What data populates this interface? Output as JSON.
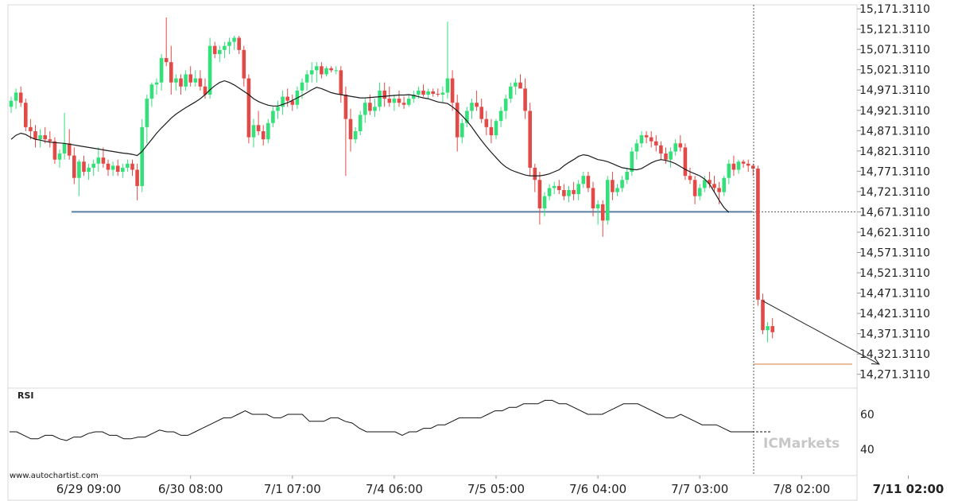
{
  "chart_data": {
    "type": "candlestick",
    "y_axis": {
      "side": "right",
      "ylim": [
        14241.311,
        15181.311
      ],
      "ticks": [
        "15,171.3110",
        "15,121.3110",
        "15,071.3110",
        "15,021.3110",
        "14,971.3110",
        "14,921.3110",
        "14,871.3110",
        "14,821.3110",
        "14,771.3110",
        "14,721.3110",
        "14,671.3110",
        "14,621.3110",
        "14,571.3110",
        "14,521.3110",
        "14,471.3110",
        "14,421.3110",
        "14,371.3110",
        "14,321.3110",
        "14,271.3110"
      ],
      "tick_values": [
        15171.311,
        15121.311,
        15071.311,
        15021.311,
        14971.311,
        14921.311,
        14871.311,
        14821.311,
        14771.311,
        14721.311,
        14671.311,
        14621.311,
        14571.311,
        14521.311,
        14471.311,
        14421.311,
        14371.311,
        14321.311,
        14271.311
      ]
    },
    "x_axis": {
      "ticks": [
        "6/29 09:00",
        "6/30 08:00",
        "7/1 07:00",
        "7/4 06:00",
        "7/5 05:00",
        "7/6 04:00",
        "7/7 03:00",
        "7/8 02:00",
        "7/11 02:00"
      ],
      "tick_index": [
        16,
        37,
        58,
        79,
        100,
        121,
        142,
        163,
        185
      ],
      "highlight": "7/11 02:00"
    },
    "candles": [
      [
        14930,
        14955,
        14915,
        14945
      ],
      [
        14945,
        14975,
        14925,
        14965
      ],
      [
        14965,
        14980,
        14930,
        14940
      ],
      [
        14940,
        14950,
        14870,
        14880
      ],
      [
        14880,
        14900,
        14850,
        14870
      ],
      [
        14870,
        14885,
        14830,
        14850
      ],
      [
        14850,
        14875,
        14830,
        14860
      ],
      [
        14860,
        14880,
        14840,
        14850
      ],
      [
        14850,
        14870,
        14830,
        14845
      ],
      [
        14845,
        14855,
        14790,
        14800
      ],
      [
        14800,
        14825,
        14780,
        14815
      ],
      [
        14815,
        14915,
        14800,
        14840
      ],
      [
        14840,
        14875,
        14800,
        14810
      ],
      [
        14810,
        14830,
        14740,
        14755
      ],
      [
        14755,
        14800,
        14710,
        14795
      ],
      [
        14795,
        14810,
        14760,
        14770
      ],
      [
        14770,
        14790,
        14750,
        14780
      ],
      [
        14780,
        14800,
        14760,
        14790
      ],
      [
        14790,
        14830,
        14770,
        14805
      ],
      [
        14805,
        14830,
        14780,
        14790
      ],
      [
        14790,
        14800,
        14760,
        14775
      ],
      [
        14775,
        14795,
        14760,
        14785
      ],
      [
        14785,
        14800,
        14760,
        14770
      ],
      [
        14770,
        14790,
        14755,
        14780
      ],
      [
        14780,
        14800,
        14770,
        14790
      ],
      [
        14790,
        14800,
        14760,
        14775
      ],
      [
        14775,
        14790,
        14700,
        14735
      ],
      [
        14735,
        14900,
        14720,
        14880
      ],
      [
        14880,
        14960,
        14840,
        14950
      ],
      [
        14950,
        14990,
        14930,
        14985
      ],
      [
        14985,
        15000,
        14960,
        14990
      ],
      [
        14990,
        15060,
        14970,
        15050
      ],
      [
        15050,
        15150,
        15030,
        15040
      ],
      [
        15040,
        15080,
        14960,
        14990
      ],
      [
        14990,
        15010,
        14970,
        15000
      ],
      [
        15000,
        15010,
        14960,
        14980
      ],
      [
        14980,
        15020,
        14970,
        15010
      ],
      [
        15010,
        15030,
        14980,
        14990
      ],
      [
        14990,
        15020,
        14980,
        15000
      ],
      [
        15000,
        15020,
        14970,
        14980
      ],
      [
        14980,
        15000,
        14950,
        14960
      ],
      [
        14960,
        15100,
        14950,
        15080
      ],
      [
        15080,
        15090,
        15050,
        15060
      ],
      [
        15060,
        15080,
        15040,
        15070
      ],
      [
        15070,
        15090,
        15050,
        15080
      ],
      [
        15080,
        15100,
        15060,
        15090
      ],
      [
        15090,
        15105,
        15070,
        15100
      ],
      [
        15100,
        15105,
        15060,
        15070
      ],
      [
        15070,
        15080,
        14980,
        15000
      ],
      [
        15000,
        15010,
        14840,
        14855
      ],
      [
        14855,
        14900,
        14830,
        14885
      ],
      [
        14885,
        14920,
        14860,
        14870
      ],
      [
        14870,
        14885,
        14835,
        14850
      ],
      [
        14850,
        14900,
        14840,
        14890
      ],
      [
        14890,
        14930,
        14880,
        14920
      ],
      [
        14920,
        14945,
        14900,
        14930
      ],
      [
        14930,
        14970,
        14910,
        14955
      ],
      [
        14955,
        14975,
        14930,
        14945
      ],
      [
        14945,
        14960,
        14920,
        14935
      ],
      [
        14935,
        14980,
        14925,
        14970
      ],
      [
        14970,
        15000,
        14950,
        14990
      ],
      [
        14990,
        15020,
        14970,
        15010
      ],
      [
        15010,
        15040,
        14990,
        15020
      ],
      [
        15020,
        15040,
        14990,
        15030
      ],
      [
        15030,
        15040,
        15000,
        15010
      ],
      [
        15010,
        15030,
        15005,
        15025
      ],
      [
        15025,
        15030,
        15015,
        15020
      ],
      [
        15020,
        15030,
        15010,
        15020
      ],
      [
        15020,
        15030,
        14940,
        14960
      ],
      [
        14960,
        14980,
        14760,
        14900
      ],
      [
        14900,
        14925,
        14820,
        14850
      ],
      [
        14850,
        14880,
        14840,
        14870
      ],
      [
        14870,
        14920,
        14860,
        14910
      ],
      [
        14910,
        14950,
        14890,
        14940
      ],
      [
        14940,
        14960,
        14910,
        14920
      ],
      [
        14920,
        14950,
        14905,
        14930
      ],
      [
        14930,
        14990,
        14920,
        14970
      ],
      [
        14970,
        14990,
        14930,
        14950
      ],
      [
        14950,
        14980,
        14930,
        14940
      ],
      [
        14940,
        14960,
        14920,
        14950
      ],
      [
        14950,
        14970,
        14930,
        14940
      ],
      [
        14940,
        14955,
        14925,
        14935
      ],
      [
        14935,
        14960,
        14930,
        14950
      ],
      [
        14950,
        14970,
        14940,
        14960
      ],
      [
        14960,
        14980,
        14950,
        14970
      ],
      [
        14970,
        14985,
        14955,
        14960
      ],
      [
        14960,
        14975,
        14950,
        14968
      ],
      [
        14968,
        14975,
        14955,
        14962
      ],
      [
        14962,
        14975,
        14955,
        14960
      ],
      [
        14960,
        14980,
        14940,
        14965
      ],
      [
        14965,
        15140,
        14950,
        15000
      ],
      [
        15000,
        15020,
        14920,
        14940
      ],
      [
        14940,
        14960,
        14820,
        14855
      ],
      [
        14855,
        14900,
        14840,
        14890
      ],
      [
        14890,
        14930,
        14880,
        14920
      ],
      [
        14920,
        14950,
        14900,
        14940
      ],
      [
        14940,
        14970,
        14920,
        14930
      ],
      [
        14930,
        14950,
        14890,
        14900
      ],
      [
        14900,
        14920,
        14860,
        14880
      ],
      [
        14880,
        14900,
        14840,
        14860
      ],
      [
        14860,
        14900,
        14850,
        14895
      ],
      [
        14895,
        14930,
        14880,
        14920
      ],
      [
        14920,
        14960,
        14900,
        14950
      ],
      [
        14950,
        14990,
        14940,
        14980
      ],
      [
        14980,
        15000,
        14960,
        14990
      ],
      [
        14990,
        15010,
        14980,
        14975
      ],
      [
        14975,
        15000,
        14900,
        14920
      ],
      [
        14920,
        14940,
        14760,
        14780
      ],
      [
        14780,
        14790,
        14720,
        14750
      ],
      [
        14750,
        14770,
        14640,
        14680
      ],
      [
        14680,
        14720,
        14660,
        14710
      ],
      [
        14710,
        14740,
        14700,
        14730
      ],
      [
        14730,
        14745,
        14715,
        14735
      ],
      [
        14735,
        14750,
        14715,
        14725
      ],
      [
        14725,
        14740,
        14700,
        14710
      ],
      [
        14710,
        14735,
        14695,
        14725
      ],
      [
        14725,
        14745,
        14700,
        14715
      ],
      [
        14715,
        14750,
        14700,
        14740
      ],
      [
        14740,
        14770,
        14730,
        14760
      ],
      [
        14760,
        14770,
        14720,
        14730
      ],
      [
        14730,
        14745,
        14660,
        14680
      ],
      [
        14680,
        14700,
        14640,
        14690
      ],
      [
        14690,
        14700,
        14610,
        14650
      ],
      [
        14650,
        14760,
        14640,
        14750
      ],
      [
        14750,
        14770,
        14700,
        14720
      ],
      [
        14720,
        14740,
        14710,
        14730
      ],
      [
        14730,
        14760,
        14720,
        14750
      ],
      [
        14750,
        14780,
        14740,
        14770
      ],
      [
        14770,
        14830,
        14760,
        14820
      ],
      [
        14820,
        14850,
        14800,
        14840
      ],
      [
        14840,
        14870,
        14830,
        14860
      ],
      [
        14860,
        14870,
        14840,
        14855
      ],
      [
        14855,
        14870,
        14830,
        14845
      ],
      [
        14845,
        14860,
        14820,
        14835
      ],
      [
        14835,
        14845,
        14800,
        14815
      ],
      [
        14815,
        14830,
        14790,
        14800
      ],
      [
        14800,
        14830,
        14780,
        14820
      ],
      [
        14820,
        14850,
        14810,
        14840
      ],
      [
        14840,
        14860,
        14820,
        14830
      ],
      [
        14830,
        14840,
        14750,
        14760
      ],
      [
        14760,
        14780,
        14740,
        14750
      ],
      [
        14750,
        14760,
        14690,
        14710
      ],
      [
        14710,
        14740,
        14700,
        14730
      ],
      [
        14730,
        14760,
        14720,
        14750
      ],
      [
        14750,
        14770,
        14730,
        14740
      ],
      [
        14740,
        14760,
        14720,
        14730
      ],
      [
        14730,
        14745,
        14690,
        14720
      ],
      [
        14720,
        14760,
        14710,
        14755
      ],
      [
        14755,
        14800,
        14740,
        14790
      ],
      [
        14790,
        14810,
        14760,
        14775
      ],
      [
        14775,
        14800,
        14765,
        14795
      ],
      [
        14795,
        14800,
        14780,
        14790
      ],
      [
        14790,
        14800,
        14770,
        14785
      ],
      [
        14785,
        14790,
        14760,
        14778
      ],
      [
        14778,
        14785,
        14440,
        14455
      ],
      [
        14455,
        14470,
        14370,
        14380
      ],
      [
        14380,
        14400,
        14350,
        14390
      ],
      [
        14390,
        14410,
        14360,
        14375
      ]
    ],
    "moving_average": [
      14850,
      14860,
      14865,
      14862,
      14855,
      14850,
      14848,
      14845,
      14843,
      14842,
      14841,
      14840,
      14838,
      14836,
      14834,
      14832,
      14830,
      14828,
      14826,
      14824,
      14822,
      14820,
      14818,
      14816,
      14815,
      14813,
      14810,
      14820,
      14835,
      14850,
      14865,
      14878,
      14890,
      14902,
      14912,
      14920,
      14928,
      14935,
      14942,
      14950,
      14960,
      14972,
      14982,
      14990,
      14994,
      14990,
      14984,
      14976,
      14968,
      14960,
      14950,
      14943,
      14938,
      14934,
      14932,
      14932,
      14936,
      14940,
      14946,
      14952,
      14958,
      14965,
      14972,
      14978,
      14975,
      14970,
      14965,
      14962,
      14960,
      14958,
      14956,
      14954,
      14952,
      14952,
      14953,
      14954,
      14955,
      14956,
      14957,
      14958,
      14959,
      14959,
      14960,
      14958,
      14955,
      14952,
      14950,
      14946,
      14942,
      14940,
      14938,
      14930,
      14920,
      14908,
      14895,
      14880,
      14863,
      14847,
      14832,
      14818,
      14805,
      14792,
      14782,
      14775,
      14770,
      14766,
      14762,
      14760,
      14760,
      14760,
      14762,
      14765,
      14770,
      14775,
      14785,
      14793,
      14800,
      14808,
      14812,
      14810,
      14805,
      14800,
      14798,
      14795,
      14790,
      14785,
      14780,
      14778,
      14776,
      14775,
      14778,
      14785,
      14792,
      14797,
      14800,
      14798,
      14795,
      14790,
      14783,
      14776,
      14770,
      14765,
      14760,
      14752,
      14740,
      14720,
      14700,
      14682,
      14670
    ],
    "support_level": 14671.311,
    "target_level": 14296.311,
    "projection": {
      "from_index": 155,
      "from_value": 14452,
      "to_index": 179,
      "to_value": 14296.311
    },
    "rsi": {
      "label": "RSI",
      "ticks": [
        "60",
        "40"
      ],
      "tick_values": [
        60,
        40
      ],
      "ylim": [
        25,
        75
      ],
      "values": [
        50,
        50,
        48,
        46,
        46,
        48,
        48,
        46,
        45,
        47,
        47,
        49,
        50,
        50,
        48,
        48,
        46,
        46,
        47,
        47,
        49,
        51,
        50,
        50,
        48,
        48,
        50,
        52,
        54,
        56,
        58,
        58,
        60,
        62,
        60,
        60,
        60,
        58,
        58,
        60,
        60,
        60,
        56,
        56,
        56,
        58,
        58,
        56,
        55,
        52,
        50,
        50,
        50,
        50,
        50,
        48,
        50,
        50,
        52,
        52,
        54,
        54,
        56,
        58,
        58,
        58,
        58,
        60,
        62,
        62,
        64,
        64,
        66,
        66,
        66,
        68,
        68,
        66,
        66,
        64,
        62,
        60,
        60,
        60,
        62,
        64,
        66,
        66,
        66,
        64,
        62,
        60,
        58,
        58,
        60,
        58,
        56,
        54,
        54,
        54,
        52,
        50,
        50,
        50,
        50
      ]
    },
    "watermark": "www.autochartist.com",
    "brand": "ICMarkets",
    "colors": {
      "bull": "#33e07a",
      "bear": "#e24a48",
      "ma": "#1c1c1c",
      "support": "#5a7ea0",
      "target": "#d98c50",
      "grid": "#cfcfcf"
    }
  }
}
